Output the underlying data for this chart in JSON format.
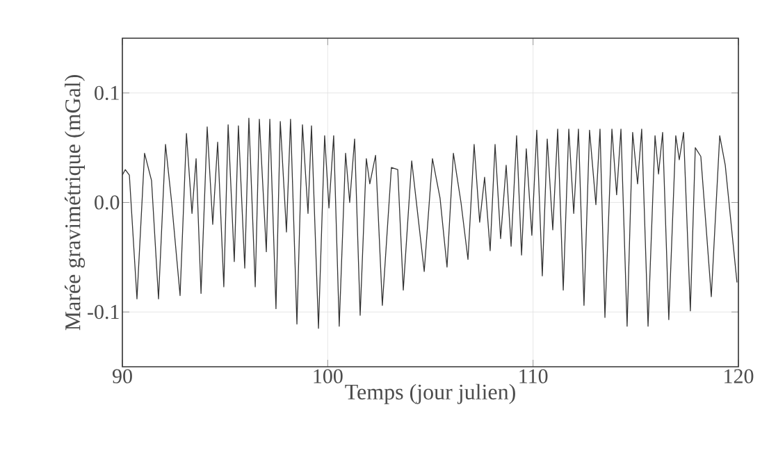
{
  "chart_data": {
    "type": "line",
    "xlabel": "Temps (jour julien)",
    "ylabel": "Marée gravimétrique (mGal)",
    "x": [
      90.0,
      90.14,
      90.34,
      90.71,
      91.08,
      91.42,
      91.76,
      92.1,
      92.4,
      92.81,
      93.12,
      93.39,
      93.59,
      93.83,
      94.13,
      94.4,
      94.64,
      94.94,
      95.15,
      95.45,
      95.65,
      95.96,
      96.16,
      96.47,
      96.67,
      97.01,
      97.18,
      97.48,
      97.69,
      97.99,
      98.19,
      98.5,
      98.77,
      99.04,
      99.21,
      99.55,
      99.85,
      100.06,
      100.29,
      100.56,
      100.87,
      101.07,
      101.31,
      101.58,
      101.88,
      102.05,
      102.33,
      102.66,
      103.1,
      103.41,
      103.68,
      104.09,
      104.7,
      105.1,
      105.47,
      105.81,
      106.12,
      106.49,
      106.83,
      107.13,
      107.4,
      107.64,
      107.91,
      108.15,
      108.42,
      108.69,
      108.93,
      109.2,
      109.44,
      109.67,
      109.94,
      110.18,
      110.45,
      110.69,
      110.96,
      111.2,
      111.47,
      111.74,
      111.98,
      112.21,
      112.48,
      112.75,
      113.06,
      113.26,
      113.5,
      113.84,
      114.07,
      114.28,
      114.58,
      114.85,
      115.09,
      115.29,
      115.6,
      115.94,
      116.11,
      116.31,
      116.61,
      116.95,
      117.12,
      117.33,
      117.66,
      117.9,
      118.17,
      118.68,
      119.09,
      119.36,
      119.93
    ],
    "values": [
      0.025,
      0.03,
      0.025,
      -0.088,
      0.045,
      0.02,
      -0.088,
      0.053,
      0.0,
      -0.085,
      0.063,
      -0.01,
      0.04,
      -0.083,
      0.069,
      -0.02,
      0.055,
      -0.077,
      0.071,
      -0.054,
      0.07,
      -0.06,
      0.077,
      -0.077,
      0.076,
      -0.045,
      0.076,
      -0.097,
      0.074,
      -0.027,
      0.076,
      -0.111,
      0.071,
      -0.01,
      0.07,
      -0.115,
      0.061,
      -0.005,
      0.061,
      -0.113,
      0.045,
      0.0,
      0.058,
      -0.103,
      0.04,
      0.017,
      0.043,
      -0.094,
      0.032,
      0.03,
      -0.08,
      0.038,
      -0.063,
      0.04,
      0.004,
      -0.059,
      0.045,
      0.0,
      -0.052,
      0.053,
      -0.018,
      0.023,
      -0.044,
      0.053,
      -0.033,
      0.034,
      -0.04,
      0.061,
      -0.048,
      0.049,
      -0.03,
      0.066,
      -0.067,
      0.058,
      -0.025,
      0.067,
      -0.08,
      0.067,
      -0.01,
      0.067,
      -0.094,
      0.066,
      -0.002,
      0.067,
      -0.105,
      0.067,
      0.007,
      0.067,
      -0.113,
      0.064,
      0.017,
      0.067,
      -0.113,
      0.061,
      0.026,
      0.064,
      -0.107,
      0.061,
      0.039,
      0.064,
      -0.099,
      0.05,
      0.042,
      -0.086,
      0.061,
      0.034,
      -0.073
    ],
    "color": "#333333",
    "xlim": [
      90,
      120
    ],
    "ylim": [
      -0.15,
      0.15
    ],
    "xticks": [
      90,
      100,
      110,
      120
    ],
    "yticks": [
      {
        "value": -0.1,
        "label": "-0.1"
      },
      {
        "value": 0,
        "label": "0.0"
      },
      {
        "value": 0.1,
        "label": "0.1"
      }
    ],
    "grid": true
  }
}
